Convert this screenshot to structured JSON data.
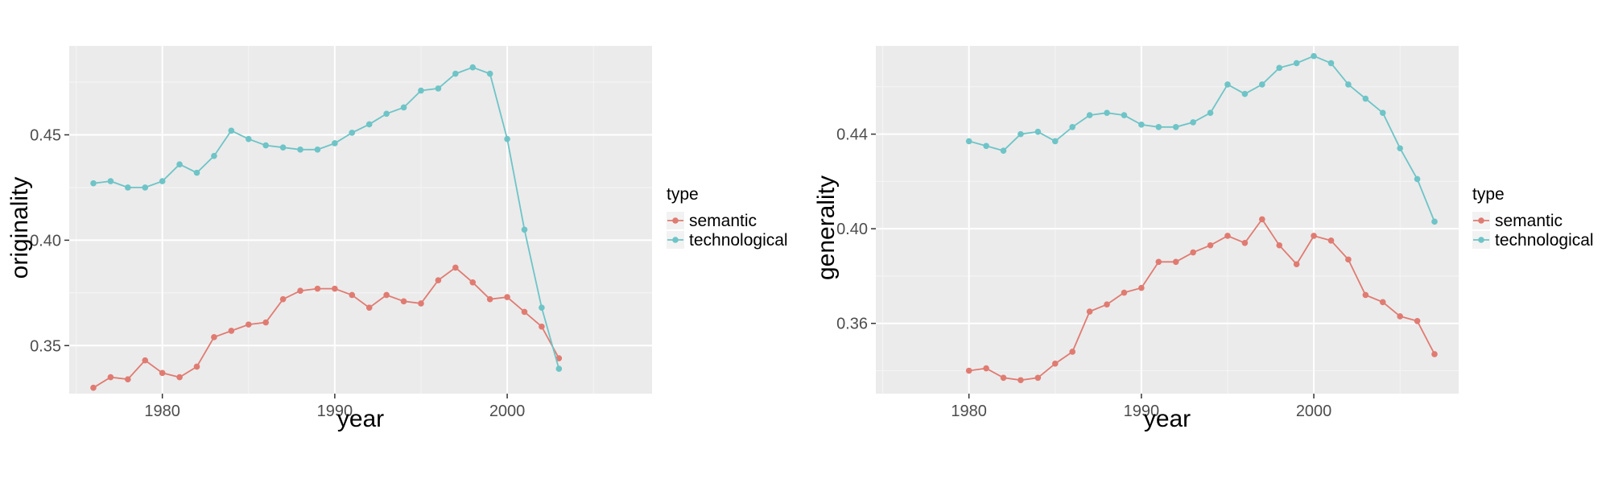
{
  "colors": {
    "panel_bg": "#ebebeb",
    "grid_major": "#ffffff",
    "semantic": "#e07b72",
    "technological": "#6ec4c7"
  },
  "chart_data": [
    {
      "type": "line",
      "xlabel": "year",
      "ylabel": "originality",
      "xlim": [
        1974.6,
        2008.4
      ],
      "ylim": [
        0.3272,
        0.4922
      ],
      "x_ticks": [
        1980,
        1990,
        2000
      ],
      "x_tick_labels": [
        "1980",
        "1990",
        "2000"
      ],
      "y_ticks": [
        0.35,
        0.4,
        0.45
      ],
      "y_tick_labels": [
        "0.35",
        "0.40",
        "0.45"
      ],
      "grid": true,
      "legend_title": "type",
      "legend_position": "right",
      "series": [
        {
          "name": "semantic",
          "color": "#e07b72",
          "x": [
            1976,
            1977,
            1978,
            1979,
            1980,
            1981,
            1982,
            1983,
            1984,
            1985,
            1986,
            1987,
            1988,
            1989,
            1990,
            1991,
            1992,
            1993,
            1994,
            1995,
            1996,
            1997,
            1998,
            1999,
            2000,
            2001,
            2002,
            2003
          ],
          "y": [
            0.33,
            0.335,
            0.334,
            0.343,
            0.337,
            0.335,
            0.34,
            0.354,
            0.357,
            0.36,
            0.361,
            0.372,
            0.376,
            0.377,
            0.377,
            0.374,
            0.368,
            0.374,
            0.371,
            0.37,
            0.381,
            0.387,
            0.38,
            0.372,
            0.373,
            0.366,
            0.359,
            0.344
          ]
        },
        {
          "name": "technological",
          "color": "#6ec4c7",
          "x": [
            1976,
            1977,
            1978,
            1979,
            1980,
            1981,
            1982,
            1983,
            1984,
            1985,
            1986,
            1987,
            1988,
            1989,
            1990,
            1991,
            1992,
            1993,
            1994,
            1995,
            1996,
            1997,
            1998,
            1999,
            2000,
            2001,
            2002,
            2003
          ],
          "y": [
            0.427,
            0.428,
            0.425,
            0.425,
            0.428,
            0.436,
            0.432,
            0.44,
            0.452,
            0.448,
            0.445,
            0.444,
            0.443,
            0.443,
            0.446,
            0.451,
            0.455,
            0.46,
            0.463,
            0.471,
            0.472,
            0.479,
            0.482,
            0.479,
            0.448,
            0.405,
            0.368,
            0.339
          ]
        }
      ]
    },
    {
      "type": "line",
      "xlabel": "year",
      "ylabel": "generality",
      "xlim": [
        1974.6,
        2008.4
      ],
      "ylim": [
        0.3303,
        0.4773
      ],
      "x_ticks": [
        1980,
        1990,
        2000
      ],
      "x_tick_labels": [
        "1980",
        "1990",
        "2000"
      ],
      "y_ticks": [
        0.36,
        0.4,
        0.44
      ],
      "y_tick_labels": [
        "0.36",
        "0.40",
        "0.44"
      ],
      "grid": true,
      "legend_title": "type",
      "legend_position": "right",
      "series": [
        {
          "name": "semantic",
          "color": "#e07b72",
          "x": [
            1980,
            1981,
            1982,
            1983,
            1984,
            1985,
            1986,
            1987,
            1988,
            1989,
            1990,
            1991,
            1992,
            1993,
            1994,
            1995,
            1996,
            1997,
            1998,
            1999,
            2000,
            2001,
            2002,
            2003,
            2004,
            2005,
            2006,
            2007
          ],
          "y": [
            0.34,
            0.341,
            0.337,
            0.336,
            0.337,
            0.343,
            0.348,
            0.365,
            0.368,
            0.373,
            0.375,
            0.386,
            0.386,
            0.39,
            0.393,
            0.397,
            0.394,
            0.404,
            0.393,
            0.385,
            0.397,
            0.395,
            0.387,
            0.372,
            0.369,
            0.363,
            0.361,
            0.347
          ]
        },
        {
          "name": "technological",
          "color": "#6ec4c7",
          "x": [
            1980,
            1981,
            1982,
            1983,
            1984,
            1985,
            1986,
            1987,
            1988,
            1989,
            1990,
            1991,
            1992,
            1993,
            1994,
            1995,
            1996,
            1997,
            1998,
            1999,
            2000,
            2001,
            2002,
            2003,
            2004,
            2005,
            2006,
            2007
          ],
          "y": [
            0.437,
            0.435,
            0.433,
            0.44,
            0.441,
            0.437,
            0.443,
            0.448,
            0.449,
            0.448,
            0.444,
            0.443,
            0.443,
            0.445,
            0.449,
            0.461,
            0.457,
            0.461,
            0.468,
            0.47,
            0.473,
            0.47,
            0.461,
            0.455,
            0.449,
            0.434,
            0.421,
            0.403
          ]
        }
      ]
    }
  ]
}
